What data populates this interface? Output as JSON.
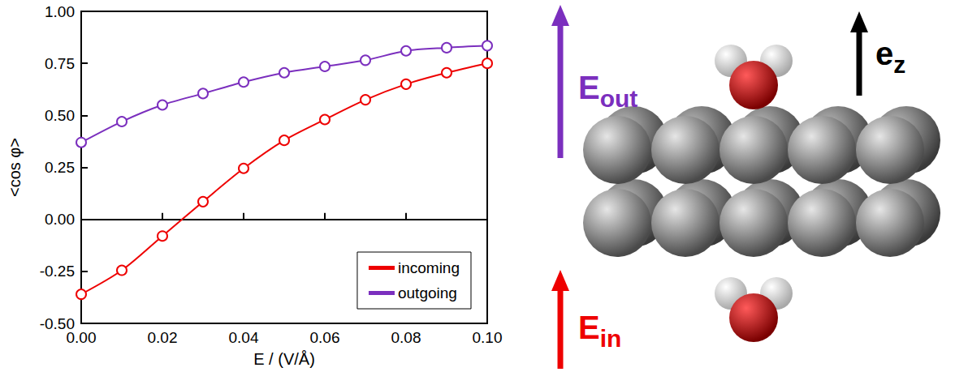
{
  "chart_data": {
    "type": "line",
    "x_label": "E / (V/Å)",
    "y_label": "<cos φ>",
    "x": [
      0,
      0.01,
      0.02,
      0.03,
      0.04,
      0.05,
      0.06,
      0.07,
      0.08,
      0.09,
      0.1
    ],
    "series": [
      {
        "name": "incoming",
        "color": "#ee0000",
        "values": [
          -0.36,
          -0.245,
          -0.08,
          0.085,
          0.245,
          0.38,
          0.48,
          0.575,
          0.65,
          0.705,
          0.75
        ]
      },
      {
        "name": "outgoing",
        "color": "#7b2fbe",
        "values": [
          0.37,
          0.47,
          0.55,
          0.605,
          0.66,
          0.705,
          0.735,
          0.765,
          0.81,
          0.825,
          0.835
        ]
      }
    ],
    "xlim": [
      0,
      0.1
    ],
    "xticks": [
      {
        "value": 0,
        "label": "0.00"
      },
      {
        "value": 0.02,
        "label": "0.02"
      },
      {
        "value": 0.04,
        "label": "0.04"
      },
      {
        "value": 0.06,
        "label": "0.06"
      },
      {
        "value": 0.08,
        "label": "0.08"
      },
      {
        "value": 0.1,
        "label": "0.10"
      }
    ],
    "ylim": [
      -0.5,
      1
    ],
    "yticks": [
      {
        "value": -0.5,
        "label": "-0.50"
      },
      {
        "value": -0.25,
        "label": "-0.25"
      },
      {
        "value": 0,
        "label": "0.00"
      },
      {
        "value": 0.25,
        "label": "0.25"
      },
      {
        "value": 0.5,
        "label": "0.50"
      },
      {
        "value": 0.75,
        "label": "0.75"
      },
      {
        "value": 1,
        "label": "1.00"
      }
    ],
    "grid": false,
    "legend": "lower right",
    "marker": "circle"
  },
  "diagram": {
    "arrows": [
      {
        "label": "E",
        "subscript": "out",
        "color": "#7b2fbe"
      },
      {
        "label": "E",
        "subscript": "in",
        "color": "#ee0000"
      },
      {
        "label": "e",
        "subscript": "z",
        "color": "#000000"
      }
    ]
  }
}
